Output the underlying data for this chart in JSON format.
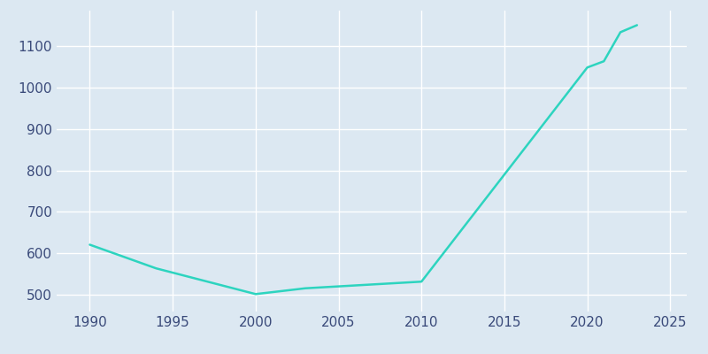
{
  "years": [
    1990,
    1994,
    2000,
    2003,
    2010,
    2020,
    2021,
    2022,
    2023
  ],
  "population": [
    621,
    564,
    502,
    516,
    532,
    1048,
    1063,
    1133,
    1150
  ],
  "line_color": "#2dd4bf",
  "bg_color": "#dce8f2",
  "plot_bg_color": "#dce8f2",
  "grid_color": "#ffffff",
  "text_color": "#3a4a7a",
  "xlim": [
    1988,
    2026
  ],
  "ylim": [
    460,
    1185
  ],
  "xticks": [
    1990,
    1995,
    2000,
    2005,
    2010,
    2015,
    2020,
    2025
  ],
  "yticks": [
    500,
    600,
    700,
    800,
    900,
    1000,
    1100
  ],
  "linewidth": 1.8,
  "tick_labelsize": 11
}
